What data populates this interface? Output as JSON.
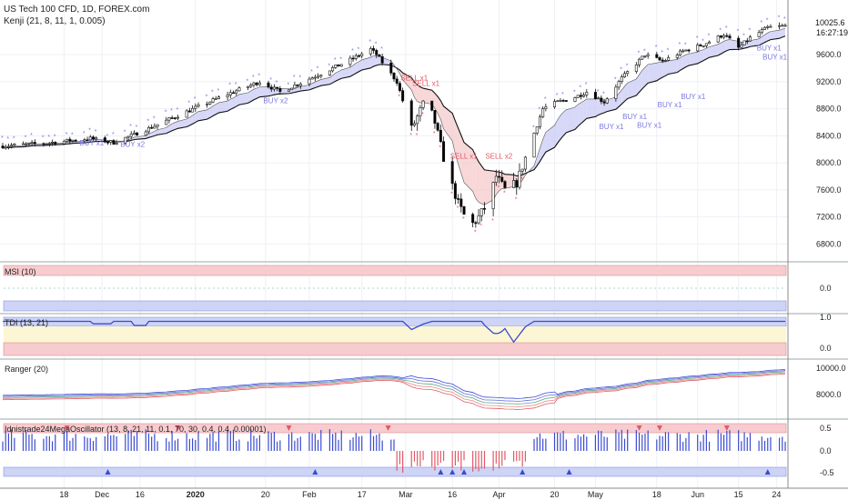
{
  "chart_data": {
    "type": "candlestick",
    "header": {
      "title": "US Tech 100 CFD, 1D, FOREX.com",
      "indicator": "Kenji (21, 8, 11, 1, 0.005)"
    },
    "last_price": "10025.6",
    "countdown": "16:27:19",
    "price_axis": {
      "ticks": [
        "9600.0",
        "9200.0",
        "8800.0",
        "8400.0",
        "8000.0",
        "7600.0",
        "7200.0",
        "6800.0"
      ],
      "values": [
        9600,
        9200,
        8800,
        8400,
        8000,
        7600,
        7200,
        6800
      ],
      "ylim": [
        6550,
        10300
      ]
    },
    "x_axis": {
      "labels": [
        "18",
        "Dec",
        "16",
        "2020",
        "20",
        "Feb",
        "17",
        "Mar",
        "16",
        "Apr",
        "20",
        "May",
        "18",
        "Jun",
        "15",
        "24"
      ],
      "label_days": [
        21,
        34,
        47,
        66,
        90,
        105,
        123,
        138,
        154,
        170,
        189,
        203,
        224,
        238,
        252,
        265
      ]
    },
    "price_waypoints": [
      [
        0,
        8250
      ],
      [
        14,
        8290
      ],
      [
        30,
        8360
      ],
      [
        38,
        8300
      ],
      [
        48,
        8470
      ],
      [
        60,
        8700
      ],
      [
        75,
        8980
      ],
      [
        88,
        9200
      ],
      [
        95,
        9050
      ],
      [
        108,
        9300
      ],
      [
        118,
        9500
      ],
      [
        126,
        9680
      ],
      [
        128,
        9600
      ],
      [
        135,
        9200
      ],
      [
        140,
        8500
      ],
      [
        145,
        8950
      ],
      [
        148,
        8600
      ],
      [
        152,
        7900
      ],
      [
        156,
        7400
      ],
      [
        160,
        7050
      ],
      [
        163,
        7200
      ],
      [
        166,
        7400
      ],
      [
        169,
        7800
      ],
      [
        172,
        7600
      ],
      [
        176,
        7700
      ],
      [
        180,
        8200
      ],
      [
        185,
        8800
      ],
      [
        190,
        8900
      ],
      [
        195,
        8950
      ],
      [
        200,
        9050
      ],
      [
        206,
        8900
      ],
      [
        212,
        9250
      ],
      [
        220,
        9600
      ],
      [
        226,
        9500
      ],
      [
        233,
        9650
      ],
      [
        240,
        9750
      ],
      [
        247,
        9900
      ],
      [
        252,
        9700
      ],
      [
        256,
        9850
      ],
      [
        262,
        10000
      ],
      [
        268,
        10025
      ]
    ],
    "signals": [
      {
        "text": "BUY x1",
        "day": 30,
        "price": 8260,
        "type": "buy"
      },
      {
        "text": "BUY x2",
        "day": 44,
        "price": 8240,
        "type": "buy"
      },
      {
        "text": "BUY x2",
        "day": 93,
        "price": 8880,
        "type": "buy"
      },
      {
        "text": "SELL x1",
        "day": 140,
        "price": 9220,
        "type": "sell"
      },
      {
        "text": "SELL x1",
        "day": 144,
        "price": 9140,
        "type": "sell"
      },
      {
        "text": "SELL x1",
        "day": 157,
        "price": 8060,
        "type": "sell"
      },
      {
        "text": "SELL x2",
        "day": 169,
        "price": 8060,
        "type": "sell"
      },
      {
        "text": "BUY x1",
        "day": 208,
        "price": 8500,
        "type": "buy"
      },
      {
        "text": "BUY x1",
        "day": 216,
        "price": 8650,
        "type": "buy"
      },
      {
        "text": "BUY x1",
        "day": 221,
        "price": 8520,
        "type": "buy"
      },
      {
        "text": "BUY x1",
        "day": 228,
        "price": 8820,
        "type": "buy"
      },
      {
        "text": "BUY x1",
        "day": 236,
        "price": 8940,
        "type": "buy"
      },
      {
        "text": "BUY x1",
        "day": 262,
        "price": 9660,
        "type": "buy"
      },
      {
        "text": "BUY x1",
        "day": 264,
        "price": 9530,
        "type": "buy"
      }
    ],
    "panels": [
      {
        "name": "MSI (10)",
        "ticks": [
          "0.0"
        ]
      },
      {
        "name": "TDI (13, 21)",
        "ticks": [
          "1.0",
          "0.0"
        ]
      },
      {
        "name": "Ranger (20)",
        "ticks": [
          "10000.0",
          "8000.0"
        ]
      },
      {
        "name": "Idnistrade24MegaOscillator (13, 8, 21, 11, 0.1, 70, 30, 0.4, 0.4, 0.00001)",
        "ticks": [
          "0.5",
          "0.0",
          "-0.5"
        ]
      }
    ],
    "colors": {
      "buy": "#7b79e0",
      "sell": "#e05a66",
      "up_candle": "#ffffff",
      "down_candle": "#000000",
      "band_up": "#c9cbf5",
      "band_down": "#f5c9cb",
      "tdi_line": "#3a4bd0",
      "zone_red": "#f7cccf",
      "zone_blue": "#cdd4f6",
      "zone_yellow": "#fdf6d4"
    }
  }
}
